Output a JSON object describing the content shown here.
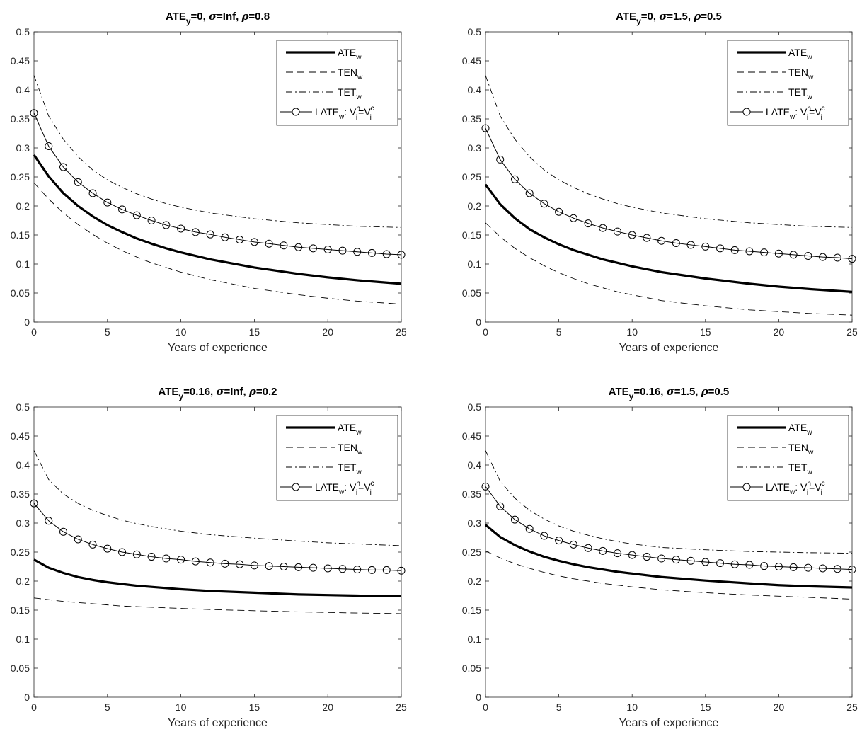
{
  "chart_data": [
    {
      "type": "line",
      "title": {
        "pre": "ATE",
        "sub": "y",
        "post": "=0, ",
        "sigma": "σ",
        "sigma_val": "=Inf, ",
        "rho": "ρ",
        "rho_val": "=0.8"
      },
      "xlabel": "Years of experience",
      "ylabel": "",
      "xlim": [
        0,
        25
      ],
      "ylim": [
        0,
        0.5
      ],
      "xticks": [
        0,
        5,
        10,
        15,
        20,
        25
      ],
      "yticks": [
        0,
        0.05,
        0.1,
        0.15,
        0.2,
        0.25,
        0.3,
        0.35,
        0.4,
        0.45,
        0.5
      ],
      "grid": false,
      "legend_position": "top-right",
      "series": [
        {
          "name": "ATE_w",
          "style": "thick-solid",
          "x": [
            0,
            1,
            2,
            3,
            4,
            5,
            6,
            7,
            8,
            9,
            10,
            12,
            15,
            18,
            20,
            22,
            25
          ],
          "y": [
            0.288,
            0.251,
            0.222,
            0.2,
            0.182,
            0.167,
            0.155,
            0.144,
            0.135,
            0.127,
            0.12,
            0.108,
            0.094,
            0.083,
            0.077,
            0.072,
            0.066
          ]
        },
        {
          "name": "TEN_w",
          "style": "dashed",
          "x": [
            0,
            1,
            2,
            3,
            4,
            5,
            6,
            7,
            8,
            9,
            10,
            12,
            15,
            18,
            20,
            22,
            25
          ],
          "y": [
            0.24,
            0.212,
            0.188,
            0.168,
            0.151,
            0.136,
            0.123,
            0.112,
            0.102,
            0.094,
            0.086,
            0.073,
            0.058,
            0.047,
            0.041,
            0.036,
            0.031
          ]
        },
        {
          "name": "TET_w",
          "style": "dashdot",
          "x": [
            0,
            1,
            2,
            3,
            4,
            5,
            6,
            7,
            8,
            9,
            10,
            12,
            15,
            18,
            20,
            22,
            25
          ],
          "y": [
            0.425,
            0.355,
            0.315,
            0.285,
            0.262,
            0.245,
            0.232,
            0.221,
            0.212,
            0.204,
            0.198,
            0.188,
            0.178,
            0.171,
            0.168,
            0.165,
            0.163
          ]
        },
        {
          "name": "LATE_w: V_i^h=V_i^c",
          "style": "solid-circles",
          "x": [
            0,
            1,
            2,
            3,
            4,
            5,
            6,
            7,
            8,
            9,
            10,
            11,
            12,
            13,
            14,
            15,
            16,
            17,
            18,
            19,
            20,
            21,
            22,
            23,
            24,
            25
          ],
          "y": [
            0.36,
            0.303,
            0.267,
            0.241,
            0.222,
            0.206,
            0.194,
            0.184,
            0.175,
            0.167,
            0.161,
            0.155,
            0.151,
            0.146,
            0.142,
            0.138,
            0.135,
            0.132,
            0.129,
            0.127,
            0.125,
            0.123,
            0.121,
            0.119,
            0.117,
            0.116
          ]
        }
      ]
    },
    {
      "type": "line",
      "title": {
        "pre": "ATE",
        "sub": "y",
        "post": "=0, ",
        "sigma": "σ",
        "sigma_val": "=1.5, ",
        "rho": "ρ",
        "rho_val": "=0.5"
      },
      "xlabel": "Years of experience",
      "ylabel": "",
      "xlim": [
        0,
        25
      ],
      "ylim": [
        0,
        0.5
      ],
      "xticks": [
        0,
        5,
        10,
        15,
        20,
        25
      ],
      "yticks": [
        0,
        0.05,
        0.1,
        0.15,
        0.2,
        0.25,
        0.3,
        0.35,
        0.4,
        0.45,
        0.5
      ],
      "grid": false,
      "legend_position": "top-right",
      "series": [
        {
          "name": "ATE_w",
          "style": "thick-solid",
          "x": [
            0,
            1,
            2,
            3,
            4,
            5,
            6,
            7,
            8,
            9,
            10,
            12,
            15,
            18,
            20,
            22,
            25
          ],
          "y": [
            0.237,
            0.203,
            0.179,
            0.16,
            0.146,
            0.134,
            0.124,
            0.116,
            0.108,
            0.102,
            0.096,
            0.086,
            0.075,
            0.066,
            0.061,
            0.057,
            0.052
          ]
        },
        {
          "name": "TEN_w",
          "style": "dashed",
          "x": [
            0,
            1,
            2,
            3,
            4,
            5,
            6,
            7,
            8,
            9,
            10,
            12,
            15,
            18,
            20,
            22,
            25
          ],
          "y": [
            0.171,
            0.147,
            0.127,
            0.111,
            0.097,
            0.085,
            0.075,
            0.066,
            0.059,
            0.052,
            0.047,
            0.037,
            0.028,
            0.021,
            0.018,
            0.015,
            0.012
          ]
        },
        {
          "name": "TET_w",
          "style": "dashdot",
          "x": [
            0,
            1,
            2,
            3,
            4,
            5,
            6,
            7,
            8,
            9,
            10,
            12,
            15,
            18,
            20,
            22,
            25
          ],
          "y": [
            0.425,
            0.355,
            0.315,
            0.285,
            0.262,
            0.245,
            0.232,
            0.221,
            0.212,
            0.204,
            0.198,
            0.188,
            0.178,
            0.171,
            0.168,
            0.165,
            0.163
          ]
        },
        {
          "name": "LATE_w: V_i^h=V_i^c",
          "style": "solid-circles",
          "x": [
            0,
            1,
            2,
            3,
            4,
            5,
            6,
            7,
            8,
            9,
            10,
            11,
            12,
            13,
            14,
            15,
            16,
            17,
            18,
            19,
            20,
            21,
            22,
            23,
            24,
            25
          ],
          "y": [
            0.334,
            0.28,
            0.246,
            0.222,
            0.204,
            0.19,
            0.179,
            0.17,
            0.162,
            0.156,
            0.15,
            0.145,
            0.14,
            0.136,
            0.133,
            0.13,
            0.127,
            0.124,
            0.122,
            0.12,
            0.118,
            0.116,
            0.114,
            0.112,
            0.111,
            0.109
          ]
        }
      ]
    },
    {
      "type": "line",
      "title": {
        "pre": "ATE",
        "sub": "y",
        "post": "=0.16, ",
        "sigma": "σ",
        "sigma_val": "=Inf, ",
        "rho": "ρ",
        "rho_val": "=0.2"
      },
      "xlabel": "Years of experience",
      "ylabel": "",
      "xlim": [
        0,
        25
      ],
      "ylim": [
        0,
        0.5
      ],
      "xticks": [
        0,
        5,
        10,
        15,
        20,
        25
      ],
      "yticks": [
        0,
        0.05,
        0.1,
        0.15,
        0.2,
        0.25,
        0.3,
        0.35,
        0.4,
        0.45,
        0.5
      ],
      "grid": false,
      "legend_position": "top-right",
      "series": [
        {
          "name": "ATE_w",
          "style": "thick-solid",
          "x": [
            0,
            1,
            2,
            3,
            4,
            5,
            6,
            7,
            8,
            9,
            10,
            12,
            15,
            18,
            20,
            22,
            25
          ],
          "y": [
            0.237,
            0.223,
            0.214,
            0.207,
            0.202,
            0.198,
            0.195,
            0.192,
            0.19,
            0.188,
            0.186,
            0.183,
            0.18,
            0.177,
            0.176,
            0.175,
            0.174
          ]
        },
        {
          "name": "TEN_w",
          "style": "dashed",
          "x": [
            0,
            1,
            2,
            3,
            4,
            5,
            6,
            7,
            8,
            9,
            10,
            12,
            15,
            18,
            20,
            22,
            25
          ],
          "y": [
            0.171,
            0.168,
            0.165,
            0.163,
            0.161,
            0.159,
            0.157,
            0.156,
            0.155,
            0.154,
            0.153,
            0.151,
            0.149,
            0.147,
            0.146,
            0.145,
            0.144
          ]
        },
        {
          "name": "TET_w",
          "style": "dashdot",
          "x": [
            0,
            1,
            2,
            3,
            4,
            5,
            6,
            7,
            8,
            9,
            10,
            12,
            15,
            18,
            20,
            22,
            25
          ],
          "y": [
            0.425,
            0.375,
            0.35,
            0.334,
            0.322,
            0.313,
            0.305,
            0.299,
            0.294,
            0.29,
            0.286,
            0.28,
            0.274,
            0.269,
            0.266,
            0.264,
            0.261
          ]
        },
        {
          "name": "LATE_w: V_i^h=V_i^c",
          "style": "solid-circles",
          "x": [
            0,
            1,
            2,
            3,
            4,
            5,
            6,
            7,
            8,
            9,
            10,
            11,
            12,
            13,
            14,
            15,
            16,
            17,
            18,
            19,
            20,
            21,
            22,
            23,
            24,
            25
          ],
          "y": [
            0.334,
            0.304,
            0.285,
            0.272,
            0.263,
            0.256,
            0.25,
            0.246,
            0.242,
            0.239,
            0.237,
            0.234,
            0.232,
            0.23,
            0.229,
            0.227,
            0.226,
            0.225,
            0.224,
            0.223,
            0.222,
            0.221,
            0.22,
            0.219,
            0.219,
            0.218
          ]
        }
      ]
    },
    {
      "type": "line",
      "title": {
        "pre": "ATE",
        "sub": "y",
        "post": "=0.16, ",
        "sigma": "σ",
        "sigma_val": "=1.5, ",
        "rho": "ρ",
        "rho_val": "=0.5"
      },
      "xlabel": "Years of experience",
      "ylabel": "",
      "xlim": [
        0,
        25
      ],
      "ylim": [
        0,
        0.5
      ],
      "xticks": [
        0,
        5,
        10,
        15,
        20,
        25
      ],
      "yticks": [
        0,
        0.05,
        0.1,
        0.15,
        0.2,
        0.25,
        0.3,
        0.35,
        0.4,
        0.45,
        0.5
      ],
      "grid": false,
      "legend_position": "top-right",
      "series": [
        {
          "name": "ATE_w",
          "style": "thick-solid",
          "x": [
            0,
            1,
            2,
            3,
            4,
            5,
            6,
            7,
            8,
            9,
            10,
            12,
            15,
            18,
            20,
            22,
            25
          ],
          "y": [
            0.297,
            0.276,
            0.262,
            0.251,
            0.242,
            0.235,
            0.229,
            0.224,
            0.22,
            0.216,
            0.213,
            0.207,
            0.201,
            0.196,
            0.193,
            0.191,
            0.189
          ]
        },
        {
          "name": "TEN_w",
          "style": "dashed",
          "x": [
            0,
            1,
            2,
            3,
            4,
            5,
            6,
            7,
            8,
            9,
            10,
            12,
            15,
            18,
            20,
            22,
            25
          ],
          "y": [
            0.252,
            0.24,
            0.23,
            0.222,
            0.215,
            0.209,
            0.204,
            0.2,
            0.196,
            0.193,
            0.19,
            0.185,
            0.18,
            0.176,
            0.174,
            0.172,
            0.169
          ]
        },
        {
          "name": "TET_w",
          "style": "dashdot",
          "x": [
            0,
            1,
            2,
            3,
            4,
            5,
            6,
            7,
            8,
            9,
            10,
            12,
            15,
            18,
            20,
            22,
            25
          ],
          "y": [
            0.425,
            0.372,
            0.343,
            0.322,
            0.307,
            0.295,
            0.286,
            0.279,
            0.273,
            0.268,
            0.264,
            0.258,
            0.254,
            0.251,
            0.25,
            0.249,
            0.248
          ]
        },
        {
          "name": "LATE_w: V_i^h=V_i^c",
          "style": "solid-circles",
          "x": [
            0,
            1,
            2,
            3,
            4,
            5,
            6,
            7,
            8,
            9,
            10,
            11,
            12,
            13,
            14,
            15,
            16,
            17,
            18,
            19,
            20,
            21,
            22,
            23,
            24,
            25
          ],
          "y": [
            0.363,
            0.329,
            0.306,
            0.29,
            0.278,
            0.27,
            0.263,
            0.257,
            0.252,
            0.248,
            0.245,
            0.242,
            0.239,
            0.237,
            0.235,
            0.233,
            0.231,
            0.229,
            0.228,
            0.226,
            0.225,
            0.224,
            0.223,
            0.222,
            0.221,
            0.22
          ]
        }
      ]
    }
  ]
}
